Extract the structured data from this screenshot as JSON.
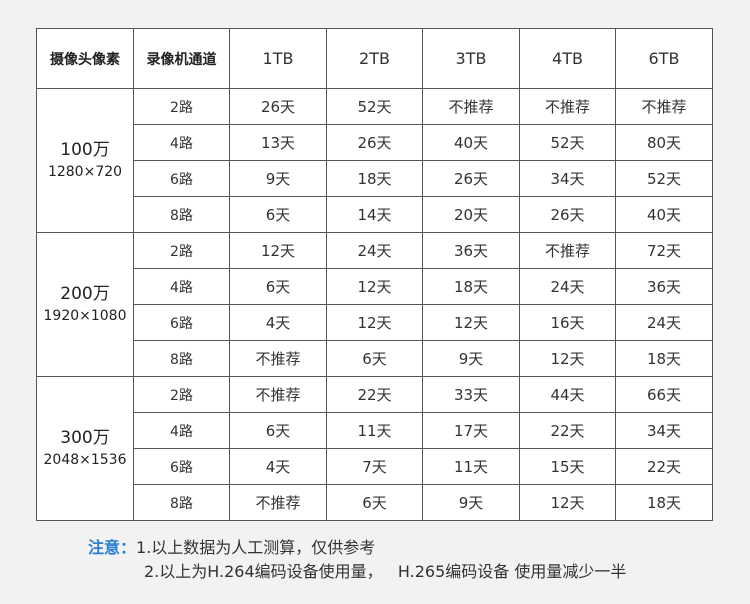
{
  "table": {
    "headers": [
      "摄像头像素",
      "录像机通道",
      "1TB",
      "2TB",
      "3TB",
      "4TB",
      "6TB"
    ],
    "groups": [
      {
        "resolution": "100万",
        "dimensions": "1280×720",
        "rows": [
          {
            "channels": "2路",
            "values": [
              "26天",
              "52天",
              "不推荐",
              "不推荐",
              "不推荐"
            ]
          },
          {
            "channels": "4路",
            "values": [
              "13天",
              "26天",
              "40天",
              "52天",
              "80天"
            ]
          },
          {
            "channels": "6路",
            "values": [
              "9天",
              "18天",
              "26天",
              "34天",
              "52天"
            ]
          },
          {
            "channels": "8路",
            "values": [
              "6天",
              "14天",
              "20天",
              "26天",
              "40天"
            ]
          }
        ]
      },
      {
        "resolution": "200万",
        "dimensions": "1920×1080",
        "rows": [
          {
            "channels": "2路",
            "values": [
              "12天",
              "24天",
              "36天",
              "不推荐",
              "72天"
            ]
          },
          {
            "channels": "4路",
            "values": [
              "6天",
              "12天",
              "18天",
              "24天",
              "36天"
            ]
          },
          {
            "channels": "6路",
            "values": [
              "4天",
              "12天",
              "12天",
              "16天",
              "24天"
            ]
          },
          {
            "channels": "8路",
            "values": [
              "不推荐",
              "6天",
              "9天",
              "12天",
              "18天"
            ]
          }
        ]
      },
      {
        "resolution": "300万",
        "dimensions": "2048×1536",
        "rows": [
          {
            "channels": "2路",
            "values": [
              "不推荐",
              "22天",
              "33天",
              "44天",
              "66天"
            ]
          },
          {
            "channels": "4路",
            "values": [
              "6天",
              "11天",
              "17天",
              "22天",
              "34天"
            ]
          },
          {
            "channels": "6路",
            "values": [
              "4天",
              "7天",
              "11天",
              "15天",
              "22天"
            ]
          },
          {
            "channels": "8路",
            "values": [
              "不推荐",
              "6天",
              "9天",
              "12天",
              "18天"
            ]
          }
        ]
      }
    ]
  },
  "notes": {
    "label": "注意：",
    "line1": "1.以上数据为人工测算，仅供参考",
    "line2": "2.以上为H.264编码设备使用量，   H.265编码设备 使用量减少一半"
  },
  "colors": {
    "note_label": "#2a7fd0",
    "border": "#555555",
    "background": "#f2f2f2"
  }
}
